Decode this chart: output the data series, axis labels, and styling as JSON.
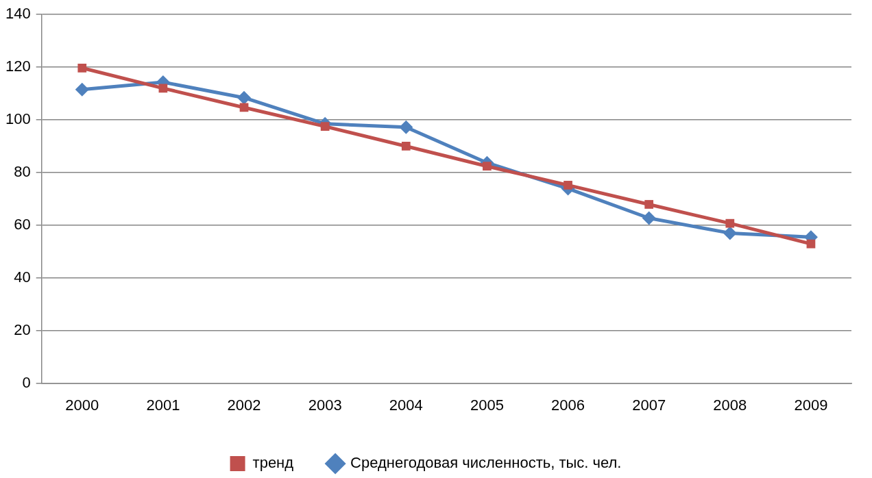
{
  "chart_data": {
    "type": "line",
    "categories": [
      "2000",
      "2001",
      "2002",
      "2003",
      "2004",
      "2005",
      "2006",
      "2007",
      "2008",
      "2009"
    ],
    "series": [
      {
        "name": "тренд",
        "color": "#c0504d",
        "marker": "square",
        "values": [
          119.7,
          112,
          104.7,
          97.5,
          90,
          82.4,
          75.2,
          67.9,
          60.7,
          52.9
        ]
      },
      {
        "name": "Среднегодовая численность, тыс. чел.",
        "color": "#4f81bd",
        "marker": "diamond",
        "values": [
          111.5,
          114.3,
          108.4,
          98.5,
          97.2,
          83.7,
          73.9,
          62.7,
          57,
          55.5
        ]
      }
    ],
    "ylim": [
      0,
      140
    ],
    "yticks": [
      0,
      20,
      40,
      60,
      80,
      100,
      120,
      140
    ],
    "grid": "y",
    "legend": "bottom"
  }
}
